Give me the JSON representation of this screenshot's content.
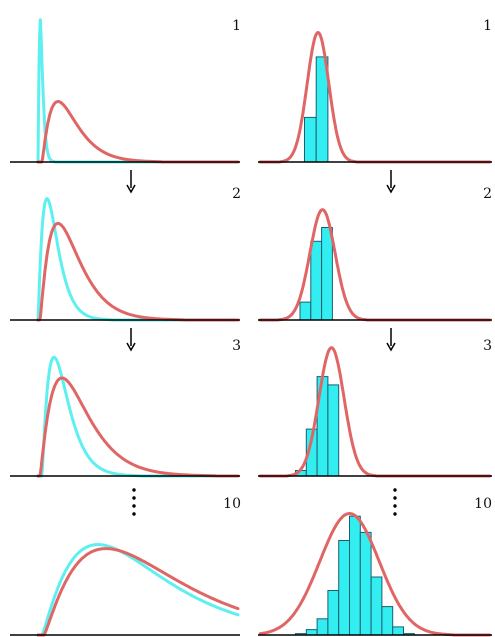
{
  "chart_data": {
    "type": "line",
    "layout": "grid of 4 rows x 2 columns",
    "colors": {
      "curve": "#e06666",
      "approx": "#5ef0f0",
      "bar_fill": "#33eef0",
      "bar_edge": "#1f5d72",
      "axis": "#000000"
    },
    "panels": [
      {
        "row": 1,
        "column": "left",
        "label": "1",
        "series": [
          {
            "color": "#e06666",
            "kind": "skewed-density",
            "start": 0.2,
            "mode": 1.0,
            "peak": 0.42,
            "tail": 3.0
          },
          {
            "color": "#5ef0f0",
            "kind": "skewed-density",
            "start": 0.0,
            "mode": 0.1,
            "peak": 1.0,
            "tail": 1.8,
            "spike": true
          }
        ]
      },
      {
        "row": 1,
        "column": "right",
        "label": "1",
        "series": [
          {
            "color": "#e06666",
            "kind": "normal",
            "mean": 1.0,
            "sd": 0.12,
            "peak": 0.9
          }
        ],
        "bars": [
          {
            "x0": 0.85,
            "x1": 0.98,
            "value": 0.31
          },
          {
            "x0": 0.98,
            "x1": 1.11,
            "value": 0.73
          }
        ]
      },
      {
        "row": 2,
        "column": "left",
        "label": "2",
        "series": [
          {
            "color": "#e06666",
            "kind": "skewed-density",
            "start": 0.1,
            "mode": 1.0,
            "peak": 0.7,
            "tail": 3.6
          },
          {
            "color": "#5ef0f0",
            "kind": "skewed-density",
            "start": 0.0,
            "mode": 0.45,
            "peak": 0.88,
            "tail": 3.2
          }
        ]
      },
      {
        "row": 2,
        "column": "right",
        "label": "2",
        "series": [
          {
            "color": "#e06666",
            "kind": "normal",
            "mean": 1.05,
            "sd": 0.14,
            "peak": 0.8
          }
        ],
        "bars": [
          {
            "x0": 0.8,
            "x1": 0.92,
            "value": 0.13
          },
          {
            "x0": 0.92,
            "x1": 1.04,
            "value": 0.57
          },
          {
            "x0": 1.04,
            "x1": 1.16,
            "value": 0.67
          },
          {
            "x0": 1.16,
            "x1": 1.28,
            "value": 0.0
          }
        ]
      },
      {
        "row": 3,
        "column": "left",
        "label": "3",
        "series": [
          {
            "color": "#e06666",
            "kind": "skewed-density",
            "start": 0.1,
            "mode": 1.2,
            "peak": 0.71,
            "tail": 4.2
          },
          {
            "color": "#5ef0f0",
            "kind": "skewed-density",
            "start": 0.2,
            "mode": 0.8,
            "peak": 0.86,
            "tail": 4.6
          }
        ]
      },
      {
        "row": 3,
        "column": "right",
        "label": "3",
        "series": [
          {
            "color": "#e06666",
            "kind": "normal",
            "mean": 1.15,
            "sd": 0.14,
            "peak": 0.93
          }
        ],
        "bars": [
          {
            "x0": 0.75,
            "x1": 0.87,
            "value": 0.04
          },
          {
            "x0": 0.87,
            "x1": 0.99,
            "value": 0.34
          },
          {
            "x0": 0.99,
            "x1": 1.11,
            "value": 0.72
          },
          {
            "x0": 1.11,
            "x1": 1.23,
            "value": 0.66
          },
          {
            "x0": 1.23,
            "x1": 1.35,
            "value": 0.0
          }
        ]
      },
      {
        "row": 4,
        "column": "left",
        "label": "10",
        "series": [
          {
            "color": "#e06666",
            "kind": "skewed-density",
            "start": 0.3,
            "mode": 3.4,
            "peak": 0.64,
            "tail": 5.0
          },
          {
            "color": "#5ef0f0",
            "kind": "skewed-density",
            "start": 0.2,
            "mode": 3.0,
            "peak": 0.67,
            "tail": 5.0
          }
        ]
      },
      {
        "row": 4,
        "column": "right",
        "label": "10",
        "series": [
          {
            "color": "#e06666",
            "kind": "normal",
            "mean": 1.35,
            "sd": 0.33,
            "peak": 0.9
          }
        ],
        "bars": [
          {
            "x0": 0.75,
            "x1": 0.87,
            "value": 0.01
          },
          {
            "x0": 0.87,
            "x1": 0.99,
            "value": 0.04
          },
          {
            "x0": 0.99,
            "x1": 1.11,
            "value": 0.12
          },
          {
            "x0": 1.11,
            "x1": 1.23,
            "value": 0.33
          },
          {
            "x0": 1.23,
            "x1": 1.35,
            "value": 0.7
          },
          {
            "x0": 1.35,
            "x1": 1.47,
            "value": 0.88
          },
          {
            "x0": 1.47,
            "x1": 1.59,
            "value": 0.76
          },
          {
            "x0": 1.59,
            "x1": 1.71,
            "value": 0.43
          },
          {
            "x0": 1.71,
            "x1": 1.83,
            "value": 0.21
          },
          {
            "x0": 1.83,
            "x1": 1.95,
            "value": 0.06
          },
          {
            "x0": 1.95,
            "x1": 2.07,
            "value": 0.01
          }
        ]
      }
    ],
    "connectors": [
      {
        "between_rows": [
          1,
          2
        ],
        "symbol": "arrow"
      },
      {
        "between_rows": [
          2,
          3
        ],
        "symbol": "arrow"
      },
      {
        "between_rows": [
          3,
          4
        ],
        "symbol": "ellipsis"
      }
    ]
  }
}
